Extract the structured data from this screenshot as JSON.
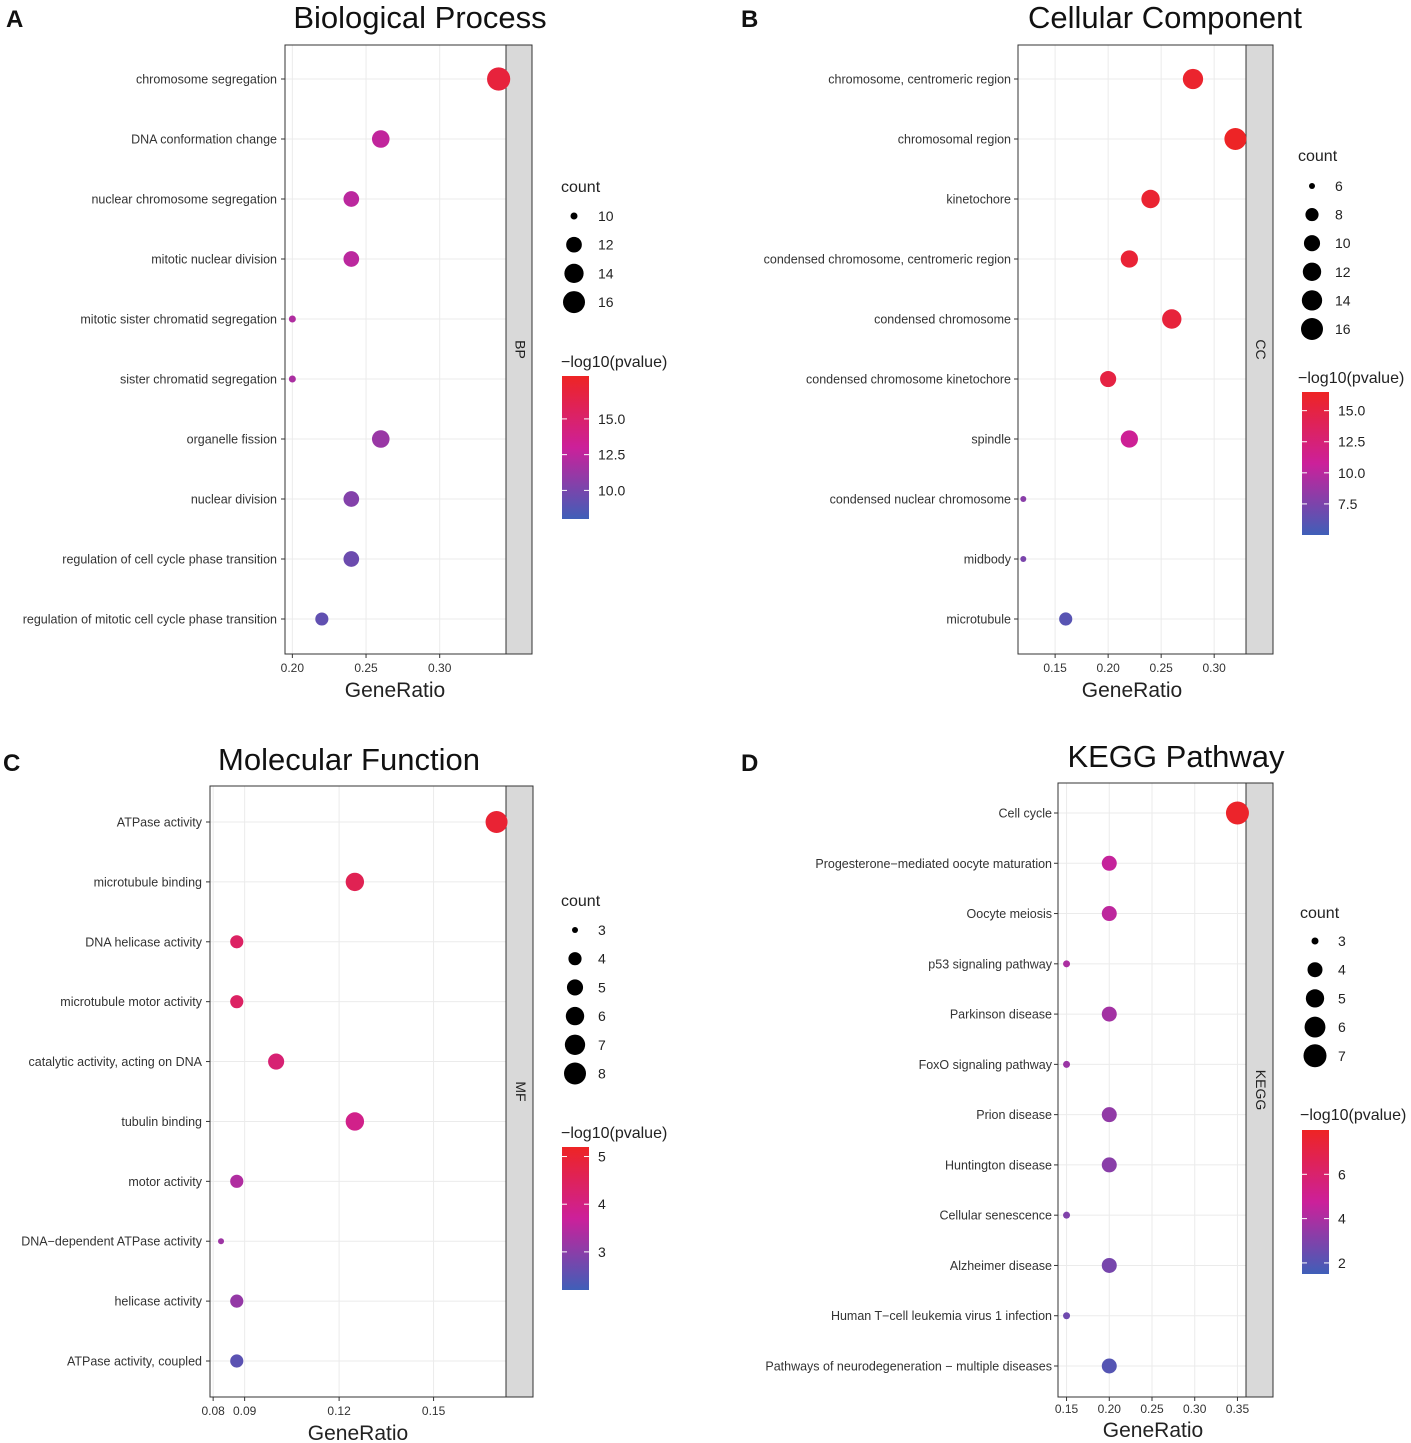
{
  "colors": {
    "low": "#3f5fb8",
    "mid": "#cc209a",
    "high": "#ee2424"
  },
  "chart_data": [
    {
      "panel_letter": "A",
      "type": "scatter",
      "title": "Biological Process",
      "strip": "BP",
      "xlabel": "GeneRatio",
      "xlim": [
        0.195,
        0.345
      ],
      "xticks": [
        0.2,
        0.25,
        0.3
      ],
      "xtick_labels": [
        "0.20",
        "0.25",
        "0.30"
      ],
      "categories": [
        "chromosome segregation",
        "DNA conformation change",
        "nuclear chromosome segregation",
        "mitotic nuclear division",
        "mitotic sister chromatid segregation",
        "sister chromatid segregation",
        "organelle fission",
        "nuclear division",
        "regulation of cell cycle phase transition",
        "regulation of mitotic cell cycle phase transition"
      ],
      "gene_ratio": [
        0.34,
        0.26,
        0.24,
        0.24,
        0.2,
        0.2,
        0.26,
        0.24,
        0.24,
        0.22
      ],
      "count": [
        17,
        13,
        12,
        12,
        10,
        10,
        13,
        12,
        12,
        11
      ],
      "neg_log10_pvalue": [
        17.0,
        12.6,
        12.4,
        12.4,
        12.0,
        11.8,
        11.2,
        10.4,
        9.6,
        9.2
      ],
      "size_legend": {
        "title": "count",
        "values": [
          10,
          12,
          14,
          16
        ],
        "labels": [
          "10",
          "12",
          "14",
          "16"
        ]
      },
      "color_legend": {
        "title": "−log10(pvalue)",
        "min": 8.0,
        "max": 18.0,
        "ticks": [
          10.0,
          12.5,
          15.0
        ],
        "tick_labels": [
          "10.0",
          "12.5",
          "15.0"
        ]
      }
    },
    {
      "panel_letter": "B",
      "type": "scatter",
      "title": "Cellular Component",
      "strip": "CC",
      "xlabel": "GeneRatio",
      "xlim": [
        0.115,
        0.33
      ],
      "xticks": [
        0.15,
        0.2,
        0.25,
        0.3
      ],
      "xtick_labels": [
        "0.15",
        "0.20",
        "0.25",
        "0.30"
      ],
      "categories": [
        "chromosome, centromeric region",
        "chromosomal region",
        "kinetochore",
        "condensed chromosome, centromeric region",
        "condensed chromosome",
        "condensed chromosome kinetochore",
        "spindle",
        "condensed nuclear chromosome",
        "midbody",
        "microtubule"
      ],
      "gene_ratio": [
        0.28,
        0.32,
        0.24,
        0.22,
        0.26,
        0.2,
        0.22,
        0.12,
        0.12,
        0.16
      ],
      "count": [
        14,
        16,
        12,
        11,
        13,
        10,
        11,
        6,
        6,
        8
      ],
      "neg_log10_pvalue": [
        16.0,
        16.4,
        15.8,
        15.6,
        15.4,
        15.0,
        11.0,
        8.0,
        7.4,
        6.0
      ],
      "size_legend": {
        "title": "count",
        "values": [
          6,
          8,
          10,
          12,
          14,
          16
        ],
        "labels": [
          "6",
          "8",
          "10",
          "12",
          "14",
          "16"
        ]
      },
      "color_legend": {
        "title": "−log10(pvalue)",
        "min": 5.0,
        "max": 16.5,
        "ticks": [
          7.5,
          10.0,
          12.5,
          15.0
        ],
        "tick_labels": [
          "7.5",
          "10.0",
          "12.5",
          "15.0"
        ]
      }
    },
    {
      "panel_letter": "C",
      "type": "scatter",
      "title": "Molecular Function",
      "strip": "MF",
      "xlabel": "GeneRatio",
      "xlim": [
        0.079,
        0.173
      ],
      "xticks": [
        0.08,
        0.09,
        0.12,
        0.15
      ],
      "xtick_labels": [
        "0.08",
        "0.09",
        "0.12",
        "0.15"
      ],
      "categories": [
        "ATPase activity",
        "microtubule binding",
        "DNA helicase activity",
        "microtubule motor activity",
        "catalytic activity, acting on DNA",
        "tubulin binding",
        "motor activity",
        "DNA−dependent ATPase activity",
        "helicase activity",
        "ATPase activity, coupled"
      ],
      "gene_ratio": [
        0.17,
        0.125,
        0.0875,
        0.0875,
        0.1,
        0.125,
        0.0875,
        0.0825,
        0.0875,
        0.0875
      ],
      "count": [
        8,
        6,
        4,
        4,
        5,
        6,
        4,
        3,
        4,
        4
      ],
      "neg_log10_pvalue": [
        5.0,
        4.6,
        4.4,
        4.4,
        4.2,
        3.9,
        3.4,
        3.2,
        3.1,
        2.5
      ],
      "size_legend": {
        "title": "count",
        "values": [
          3,
          4,
          5,
          6,
          7,
          8
        ],
        "labels": [
          "3",
          "4",
          "5",
          "6",
          "7",
          "8"
        ]
      },
      "color_legend": {
        "title": "−log10(pvalue)",
        "min": 2.2,
        "max": 5.2,
        "ticks": [
          3,
          4,
          5
        ],
        "tick_labels": [
          "3",
          "4",
          "5"
        ]
      }
    },
    {
      "panel_letter": "D",
      "type": "scatter",
      "title": "KEGG Pathway",
      "strip": "KEGG",
      "xlabel": "GeneRatio",
      "xlim": [
        0.14,
        0.36
      ],
      "xticks": [
        0.15,
        0.2,
        0.25,
        0.3,
        0.35
      ],
      "xtick_labels": [
        "0.15",
        "0.20",
        "0.25",
        "0.30",
        "0.35"
      ],
      "categories": [
        "Cell cycle",
        "Progesterone−mediated oocyte maturation",
        "Oocyte meiosis",
        "p53 signaling pathway",
        "Parkinson disease",
        "FoxO signaling pathway",
        "Prion disease",
        "Huntington disease",
        "Cellular senescence",
        "Alzheimer disease",
        "Human T−cell leukemia virus 1 infection",
        "Pathways of neurodegeneration − multiple diseases"
      ],
      "gene_ratio": [
        0.35,
        0.2,
        0.2,
        0.15,
        0.2,
        0.15,
        0.2,
        0.2,
        0.15,
        0.2,
        0.15,
        0.2
      ],
      "count": [
        7,
        4,
        4,
        3,
        4,
        3,
        4,
        4,
        3,
        4,
        3,
        4
      ],
      "neg_log10_pvalue": [
        7.8,
        4.6,
        4.4,
        4.0,
        3.8,
        3.6,
        3.4,
        3.2,
        3.0,
        2.8,
        2.6,
        2.0
      ],
      "size_legend": {
        "title": "count",
        "values": [
          3,
          4,
          5,
          6,
          7
        ],
        "labels": [
          "3",
          "4",
          "5",
          "6",
          "7"
        ]
      },
      "color_legend": {
        "title": "−log10(pvalue)",
        "min": 1.5,
        "max": 8.0,
        "ticks": [
          2,
          4,
          6
        ],
        "tick_labels": [
          "2",
          "4",
          "6"
        ]
      }
    }
  ]
}
